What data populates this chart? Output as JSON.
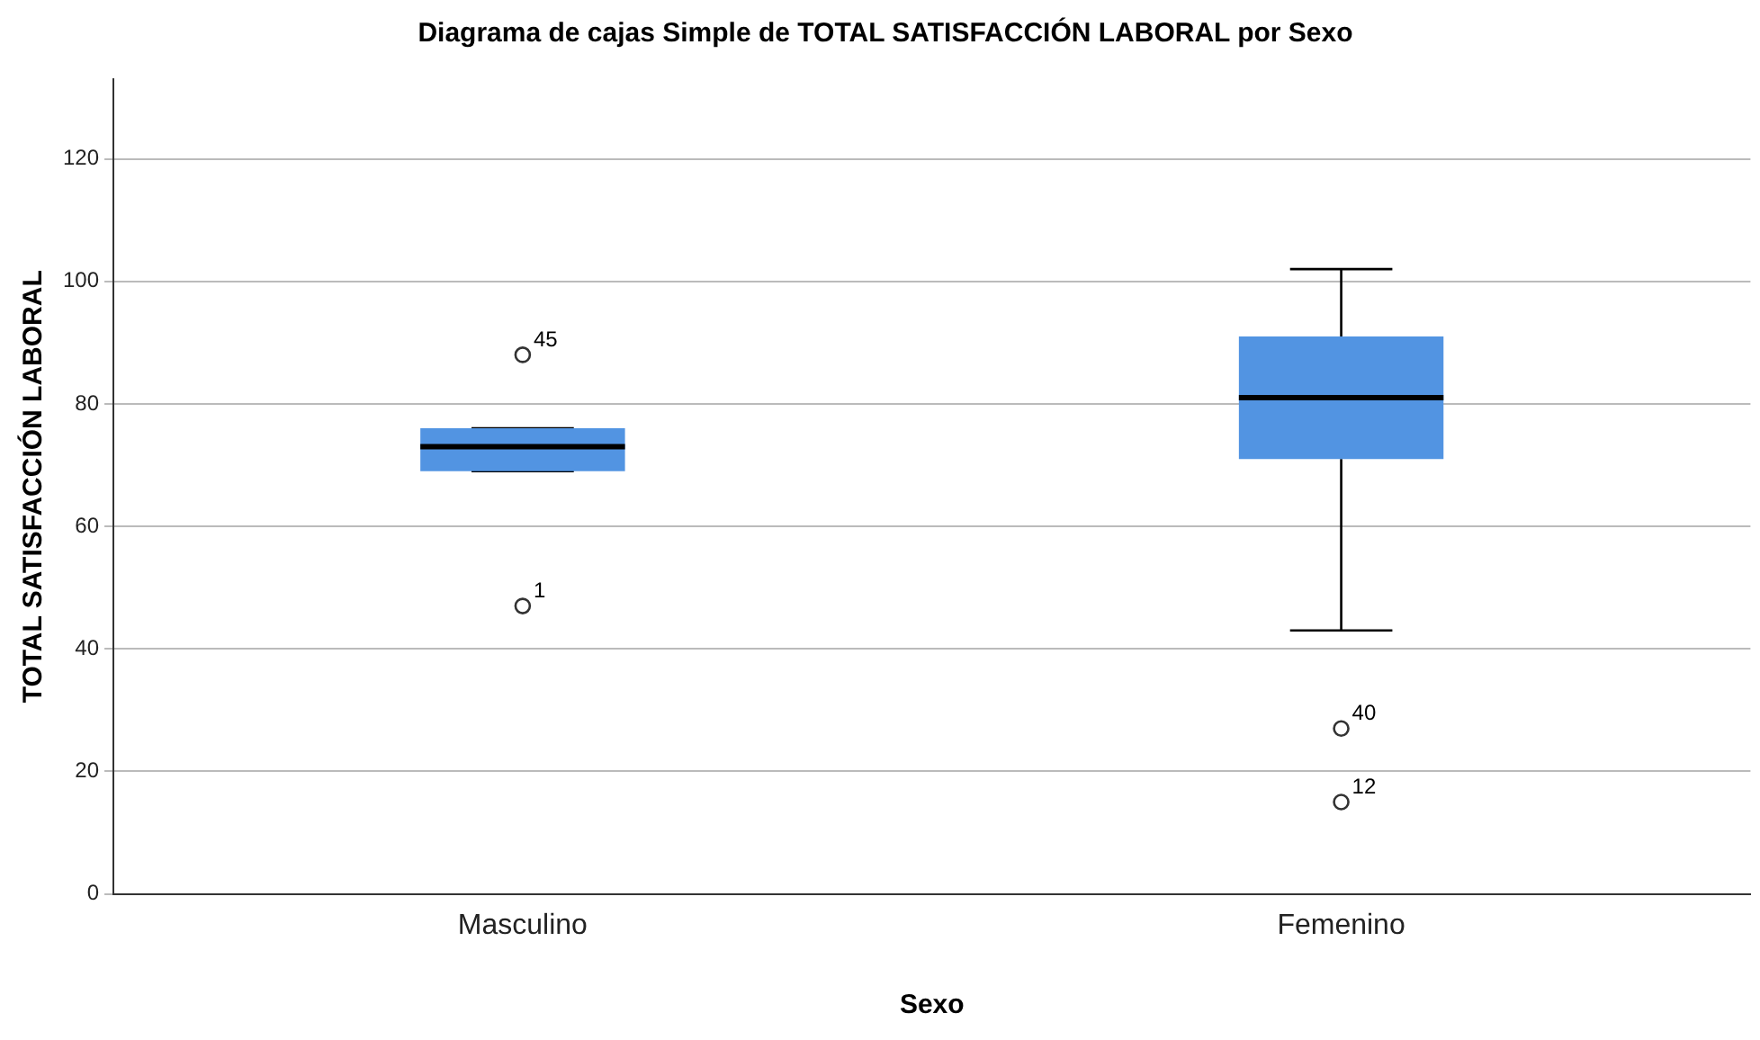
{
  "chart_data": {
    "type": "box",
    "title": "Diagrama de cajas Simple de TOTAL SATISFACCIÓN LABORAL por Sexo",
    "xlabel": "Sexo",
    "ylabel": "TOTAL SATISFACCIÓN LABORAL",
    "categories": [
      "Masculino",
      "Femenino"
    ],
    "boxes": [
      {
        "low": 69,
        "q1": 69,
        "median": 73,
        "q3": 76,
        "high": 76,
        "outliers": [
          88,
          47
        ]
      },
      {
        "low": 43,
        "q1": 71,
        "median": 81,
        "q3": 91,
        "high": 102,
        "outliers": [
          27,
          15
        ]
      }
    ],
    "color": "#5294e2",
    "ylim": [
      0,
      133
    ],
    "yticks": [
      0,
      20,
      40,
      60,
      80,
      100,
      120
    ],
    "grid": "y",
    "legend": false,
    "annotations": [
      "45",
      "1",
      "40",
      "12"
    ]
  }
}
